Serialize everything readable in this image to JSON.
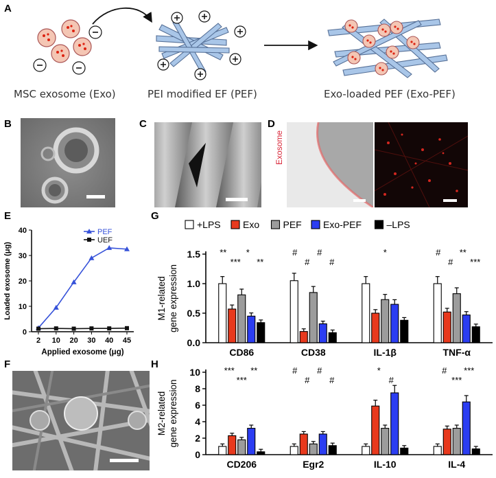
{
  "panel_labels": {
    "a": "A",
    "b": "B",
    "c": "C",
    "d": "D",
    "e": "E",
    "f": "F",
    "g": "G",
    "h": "H"
  },
  "schematic": {
    "caption_exo": "MSC exosome (Exo)",
    "caption_pef": "PEI modified EF (PEF)",
    "caption_exopef": "Exo-loaded PEF (Exo-PEF)"
  },
  "panel_d": {
    "label": "Exosome"
  },
  "colors": {
    "plus_lps": "#ffffff",
    "exo": "#e8391d",
    "pef": "#9c9c9c",
    "exo_pef": "#2b3df2",
    "minus_lps": "#000000",
    "fiber": "#a9c6e8",
    "exo_fill": "#f4c6b4"
  },
  "chart_data": [
    {
      "type": "line",
      "panel": "E",
      "xlabel": "Applied exosome (μg)",
      "ylabel": "Loaded exosome (μg)",
      "x": [
        2,
        10,
        20,
        30,
        40,
        45
      ],
      "xticks": [
        "2",
        "10",
        "20",
        "30",
        "40",
        "45"
      ],
      "yticks": [
        "0",
        "10",
        "20",
        "30",
        "40"
      ],
      "ylim": [
        0,
        40
      ],
      "series": [
        {
          "name": "PEF",
          "values": [
            1.5,
            9.5,
            19.5,
            29,
            33,
            32.5
          ]
        },
        {
          "name": "UEF",
          "values": [
            1.2,
            1.3,
            1.2,
            1.3,
            1.3,
            1.4
          ]
        }
      ]
    },
    {
      "type": "bar",
      "panel": "G",
      "ylabel_line1": "M1-related",
      "ylabel_line2": "gene expression",
      "categories": [
        "CD86",
        "CD38",
        "IL-1β",
        "TNF-α"
      ],
      "yticks": [
        "0.0",
        "0.5",
        "1.0",
        "1.5"
      ],
      "ylim": [
        0,
        1.5
      ],
      "series": [
        {
          "name": "+LPS",
          "values": [
            1.0,
            1.05,
            1.0,
            1.0
          ]
        },
        {
          "name": "Exo",
          "values": [
            0.57,
            0.19,
            0.5,
            0.52
          ]
        },
        {
          "name": "PEF",
          "values": [
            0.81,
            0.85,
            0.73,
            0.83
          ]
        },
        {
          "name": "Exo-PEF",
          "values": [
            0.45,
            0.32,
            0.65,
            0.47
          ]
        },
        {
          "name": "–LPS",
          "values": [
            0.34,
            0.17,
            0.38,
            0.27
          ]
        }
      ],
      "annotations": [
        "**",
        "***",
        "*",
        "**",
        "#",
        "#",
        "#",
        "#",
        "*",
        "#",
        "#",
        "**",
        "***"
      ]
    },
    {
      "type": "bar",
      "panel": "H",
      "ylabel_line1": "M2-related",
      "ylabel_line2": "gene expression",
      "categories": [
        "CD206",
        "Egr2",
        "IL-10",
        "IL-4"
      ],
      "yticks": [
        "0",
        "2",
        "4",
        "6",
        "8",
        "10"
      ],
      "ylim": [
        0,
        10
      ],
      "series": [
        {
          "name": "+LPS",
          "values": [
            1.0,
            1.0,
            1.0,
            1.0
          ]
        },
        {
          "name": "Exo",
          "values": [
            2.3,
            2.5,
            5.9,
            3.1
          ]
        },
        {
          "name": "PEF",
          "values": [
            1.8,
            1.3,
            3.2,
            3.2
          ]
        },
        {
          "name": "Exo-PEF",
          "values": [
            3.2,
            2.5,
            7.5,
            6.4
          ]
        },
        {
          "name": "–LPS",
          "values": [
            0.35,
            1.1,
            0.8,
            0.7
          ]
        }
      ],
      "annotations": [
        "***",
        "***",
        "**",
        "#",
        "#",
        "#",
        "#",
        "*",
        "#",
        "#",
        "***",
        "***"
      ]
    }
  ]
}
